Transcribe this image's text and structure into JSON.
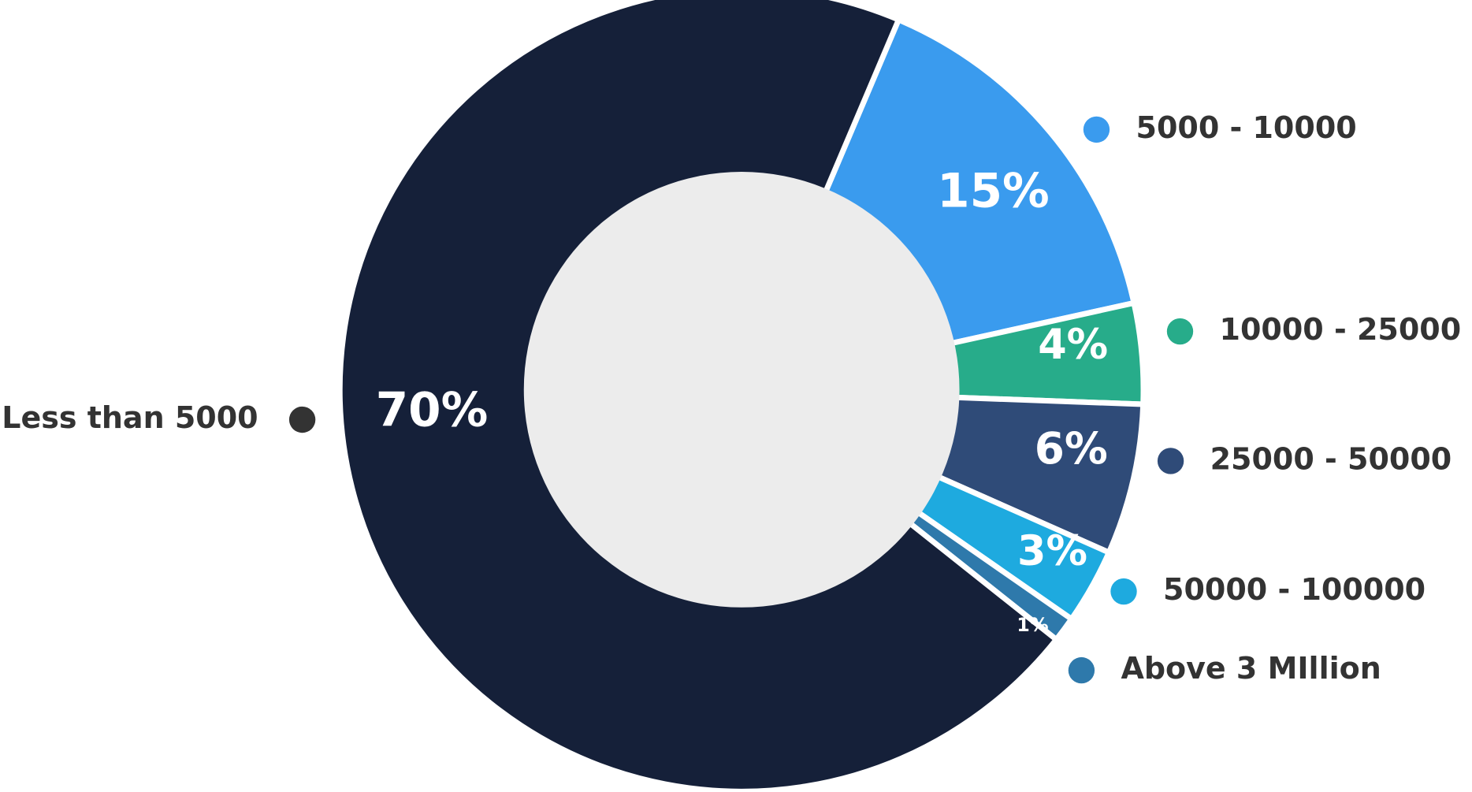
{
  "chart_data": {
    "type": "pie",
    "categories": [
      "Less than 5000",
      "5000 - 10000",
      "10000 - 25000",
      "25000 - 50000",
      "50000 - 100000",
      "Above 3 MIllion"
    ],
    "values": [
      70,
      15,
      4,
      6,
      3,
      1
    ],
    "value_labels": [
      "70%",
      "15%",
      "4%",
      "6%",
      "3%",
      "1%"
    ],
    "colors": [
      "#152039",
      "#3a9bee",
      "#27ac8a",
      "#2f4b78",
      "#1eaadf",
      "#2e79ab"
    ]
  }
}
